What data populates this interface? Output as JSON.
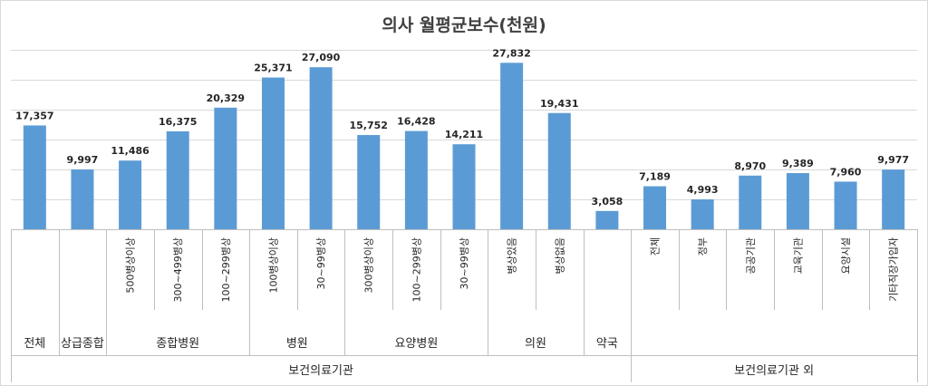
{
  "chart_data": {
    "type": "bar",
    "title": "의사 월평균보수(천원)",
    "ylim": [
      0,
      30000
    ],
    "grid": true,
    "bar_color": "#5B9BD5",
    "categories": [
      "",
      "",
      "500병상이상",
      "300~499병상",
      "100~299병상",
      "100병상이상",
      "30~99병상",
      "300병상이상",
      "100~299병상",
      "30~99병상",
      "병상있음",
      "병상없음",
      "",
      "전체",
      "정부",
      "공공기관",
      "교육기관",
      "요양시설",
      "기타직장가입자"
    ],
    "values": [
      17357,
      9997,
      11486,
      16375,
      20329,
      25371,
      27090,
      15752,
      16428,
      14211,
      27832,
      19431,
      3058,
      7189,
      4993,
      8970,
      9389,
      7960,
      9977
    ],
    "data_labels": [
      "17,357",
      "9,997",
      "11,486",
      "16,375",
      "20,329",
      "25,371",
      "27,090",
      "15,752",
      "16,428",
      "14,211",
      "27,832",
      "19,431",
      "3,058",
      "7,189",
      "4,993",
      "8,970",
      "9,389",
      "7,960",
      "9,977"
    ],
    "groups": [
      {
        "label": "전체",
        "start": 0,
        "end": 0
      },
      {
        "label": "상급종합",
        "start": 1,
        "end": 1
      },
      {
        "label": "종합병원",
        "start": 2,
        "end": 4
      },
      {
        "label": "병원",
        "start": 5,
        "end": 6
      },
      {
        "label": "요양병원",
        "start": 7,
        "end": 9
      },
      {
        "label": "의원",
        "start": 10,
        "end": 11
      },
      {
        "label": "약국",
        "start": 12,
        "end": 12
      }
    ],
    "supergroups": [
      {
        "label": "보건의료기관",
        "start": 0,
        "end": 12
      },
      {
        "label": "보건의료기관 외",
        "start": 13,
        "end": 18
      }
    ]
  }
}
